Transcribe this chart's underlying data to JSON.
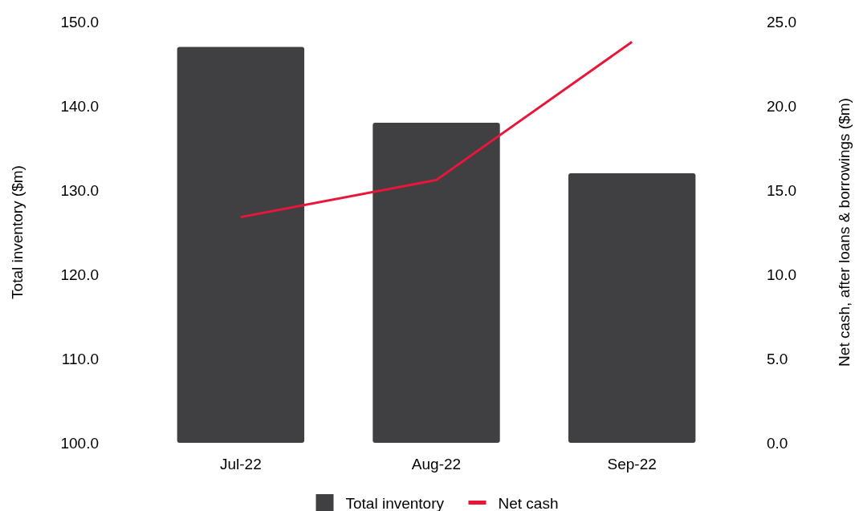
{
  "chart_data": {
    "type": "bar",
    "categories": [
      "Jul-22",
      "Aug-22",
      "Sep-22"
    ],
    "series": [
      {
        "name": "Total inventory",
        "color": "#404042",
        "values": [
          147.0,
          138.0,
          132.0
        ]
      },
      {
        "name": "Net cash",
        "type": "line",
        "axis": "y2",
        "color": "#e8173a",
        "values": [
          13.4,
          15.6,
          23.8
        ]
      }
    ],
    "ylabel": "Total inventory ($m)",
    "y2label": "Net cash, after loans & borrowings ($m)",
    "ylim": [
      100,
      150
    ],
    "yticks": [
      {
        "value": 100,
        "label": "100.0"
      },
      {
        "value": 110,
        "label": "110.0"
      },
      {
        "value": 120,
        "label": "120.0"
      },
      {
        "value": 130,
        "label": "130.0"
      },
      {
        "value": 140,
        "label": "140.0"
      },
      {
        "value": 150,
        "label": "150.0"
      }
    ],
    "y2lim": [
      0,
      25
    ],
    "y2ticks": [
      {
        "value": 0,
        "label": "0.0"
      },
      {
        "value": 5,
        "label": "5.0"
      },
      {
        "value": 10,
        "label": "10.0"
      },
      {
        "value": 15,
        "label": "15.0"
      },
      {
        "value": 20,
        "label": "20.0"
      },
      {
        "value": 25,
        "label": "25.0"
      }
    ],
    "legend": "bottom",
    "grid": false,
    "marker": "none",
    "line_style": "solid"
  }
}
